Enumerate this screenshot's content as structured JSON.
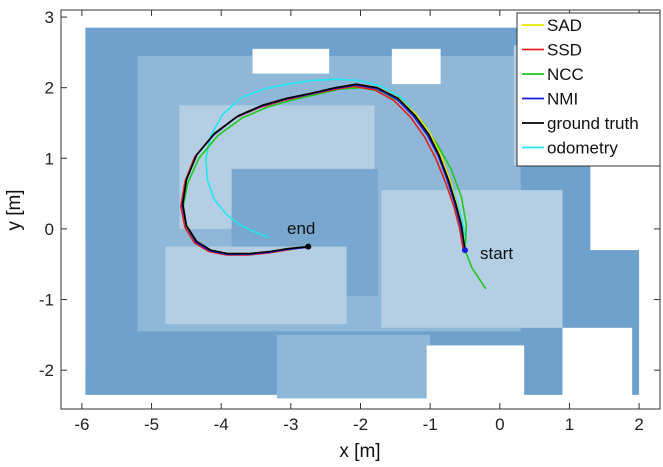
{
  "chart_data": {
    "type": "line",
    "title": "",
    "xlabel": "x [m]",
    "ylabel": "y [m]",
    "xlim": [
      -6.3,
      2.3
    ],
    "ylim": [
      -2.55,
      3.1
    ],
    "xticks": [
      -6,
      -5,
      -4,
      -3,
      -2,
      -1,
      0,
      1,
      2
    ],
    "yticks": [
      -2,
      -1,
      0,
      1,
      2,
      3
    ],
    "grid": false,
    "legend_position": "top-right",
    "annotations": [
      {
        "text": "end",
        "x": -2.75,
        "y": 0.0
      },
      {
        "text": "start",
        "x": -0.1,
        "y": -0.35
      }
    ],
    "map_colors": {
      "background": "#ffffff",
      "free_light": "#b4cfe3",
      "free_mid": "#8fb7d8",
      "obstacle": "#6fa1cd",
      "inner": "#7aa7cf"
    },
    "series": [
      {
        "name": "SAD",
        "color": "#e6e600",
        "x": [
          -0.5,
          -0.55,
          -0.62,
          -0.72,
          -0.85,
          -1.0,
          -1.2,
          -1.45,
          -1.75,
          -2.05,
          -2.35,
          -2.7,
          -3.05,
          -3.4,
          -3.75,
          -4.1,
          -4.35,
          -4.5,
          -4.55,
          -4.5,
          -4.35,
          -4.15,
          -3.9,
          -3.6,
          -3.3,
          -3.05,
          -2.85,
          -2.75
        ],
        "y": [
          -0.3,
          0.05,
          0.35,
          0.7,
          1.05,
          1.35,
          1.62,
          1.85,
          2.0,
          2.05,
          2.0,
          1.92,
          1.85,
          1.75,
          1.6,
          1.35,
          1.05,
          0.7,
          0.35,
          0.05,
          -0.18,
          -0.3,
          -0.35,
          -0.35,
          -0.32,
          -0.28,
          -0.26,
          -0.25
        ]
      },
      {
        "name": "SSD",
        "color": "#e0201a",
        "x": [
          -0.52,
          -0.58,
          -0.66,
          -0.78,
          -0.92,
          -1.08,
          -1.28,
          -1.52,
          -1.8,
          -2.1,
          -2.4,
          -2.75,
          -3.1,
          -3.45,
          -3.8,
          -4.12,
          -4.38,
          -4.52,
          -4.58,
          -4.52,
          -4.38,
          -4.18,
          -3.92,
          -3.62,
          -3.32,
          -3.07,
          -2.87,
          -2.77
        ],
        "y": [
          -0.32,
          0.02,
          0.32,
          0.66,
          1.0,
          1.3,
          1.58,
          1.82,
          1.97,
          2.02,
          1.97,
          1.9,
          1.82,
          1.72,
          1.57,
          1.32,
          1.02,
          0.67,
          0.32,
          0.02,
          -0.2,
          -0.32,
          -0.37,
          -0.37,
          -0.34,
          -0.3,
          -0.27,
          -0.26
        ]
      },
      {
        "name": "NCC",
        "color": "#1fc81f",
        "x": [
          -0.2,
          -0.4,
          -0.5,
          -0.48,
          -0.55,
          -0.7,
          -0.9,
          -1.12,
          -1.4,
          -1.7,
          -2.0,
          -2.3,
          -2.65,
          -3.0,
          -3.35,
          -3.7,
          -4.05,
          -4.32,
          -4.48,
          -4.55,
          -4.5,
          -4.35,
          -4.12,
          -3.88,
          -3.58,
          -3.28,
          -3.02,
          -2.84,
          -2.75
        ],
        "y": [
          -0.85,
          -0.55,
          -0.3,
          0.05,
          0.45,
          0.85,
          1.2,
          1.52,
          1.78,
          1.95,
          2.0,
          1.98,
          1.9,
          1.82,
          1.72,
          1.57,
          1.32,
          1.0,
          0.65,
          0.3,
          0.0,
          -0.2,
          -0.32,
          -0.36,
          -0.36,
          -0.33,
          -0.29,
          -0.26,
          -0.25
        ]
      },
      {
        "name": "NMI",
        "color": "#1a1ad8",
        "x": [
          -0.5,
          -0.56,
          -0.64,
          -0.75,
          -0.88,
          -1.04,
          -1.24,
          -1.48,
          -1.77,
          -2.07,
          -2.37,
          -2.72,
          -3.07,
          -3.42,
          -3.77,
          -4.1,
          -4.36,
          -4.5,
          -4.56,
          -4.5,
          -4.36,
          -4.16,
          -3.91,
          -3.61,
          -3.31,
          -3.06,
          -2.86,
          -2.76
        ],
        "y": [
          -0.3,
          0.04,
          0.34,
          0.68,
          1.03,
          1.33,
          1.6,
          1.84,
          1.99,
          2.04,
          1.99,
          1.91,
          1.84,
          1.74,
          1.59,
          1.34,
          1.04,
          0.69,
          0.34,
          0.04,
          -0.19,
          -0.31,
          -0.36,
          -0.36,
          -0.33,
          -0.29,
          -0.27,
          -0.26
        ]
      },
      {
        "name": "ground truth",
        "color": "#000000",
        "x": [
          -0.5,
          -0.55,
          -0.63,
          -0.74,
          -0.87,
          -1.02,
          -1.22,
          -1.46,
          -1.76,
          -2.06,
          -2.36,
          -2.71,
          -3.06,
          -3.41,
          -3.76,
          -4.1,
          -4.35,
          -4.5,
          -4.55,
          -4.5,
          -4.35,
          -4.15,
          -3.9,
          -3.6,
          -3.3,
          -3.05,
          -2.85,
          -2.75
        ],
        "y": [
          -0.3,
          0.05,
          0.35,
          0.7,
          1.04,
          1.34,
          1.61,
          1.85,
          2.0,
          2.05,
          2.0,
          1.92,
          1.85,
          1.75,
          1.6,
          1.35,
          1.05,
          0.7,
          0.35,
          0.05,
          -0.18,
          -0.3,
          -0.35,
          -0.35,
          -0.32,
          -0.28,
          -0.26,
          -0.25
        ]
      },
      {
        "name": "odometry",
        "color": "#22e6f0",
        "x": [
          -0.48,
          -0.55,
          -0.65,
          -0.78,
          -0.95,
          -1.15,
          -1.4,
          -1.7,
          -2.0,
          -2.35,
          -2.7,
          -3.05,
          -3.4,
          -3.72,
          -3.98,
          -4.15,
          -4.22,
          -4.2,
          -4.1,
          -3.92,
          -3.72,
          -3.5,
          -3.32
        ],
        "y": [
          -0.2,
          0.15,
          0.5,
          0.85,
          1.2,
          1.55,
          1.85,
          2.02,
          2.1,
          2.12,
          2.1,
          2.05,
          1.98,
          1.85,
          1.62,
          1.32,
          1.0,
          0.7,
          0.42,
          0.2,
          0.05,
          -0.05,
          -0.12
        ]
      }
    ]
  }
}
